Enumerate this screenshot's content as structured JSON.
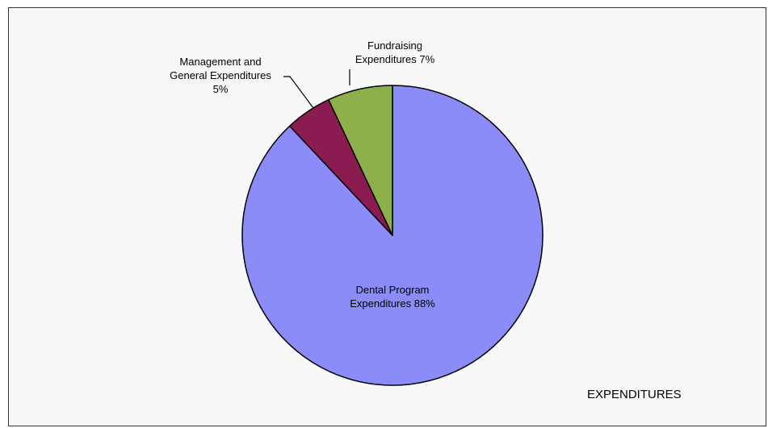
{
  "chart_data": {
    "type": "pie",
    "title": "EXPENDITURES",
    "slices": [
      {
        "label": "Dental Program Expenditures",
        "value": 88,
        "display_lines": [
          "Dental Program",
          "Expenditures 88%"
        ],
        "color": "#8b8cf9"
      },
      {
        "label": "Management and General Expenditures",
        "value": 5,
        "display_lines": [
          "Management and",
          "General Expenditures",
          "5%"
        ],
        "color": "#8b1c51"
      },
      {
        "label": "Fundraising Expenditures",
        "value": 7,
        "display_lines": [
          "Fundraising",
          "Expenditures 7%"
        ],
        "color": "#8db04a"
      }
    ],
    "start_angle_deg": 0,
    "direction": "clockwise",
    "legend": "none",
    "colors": {
      "background": "#f8f8f8",
      "border": "#333333",
      "slice_outline": "#000000"
    }
  }
}
